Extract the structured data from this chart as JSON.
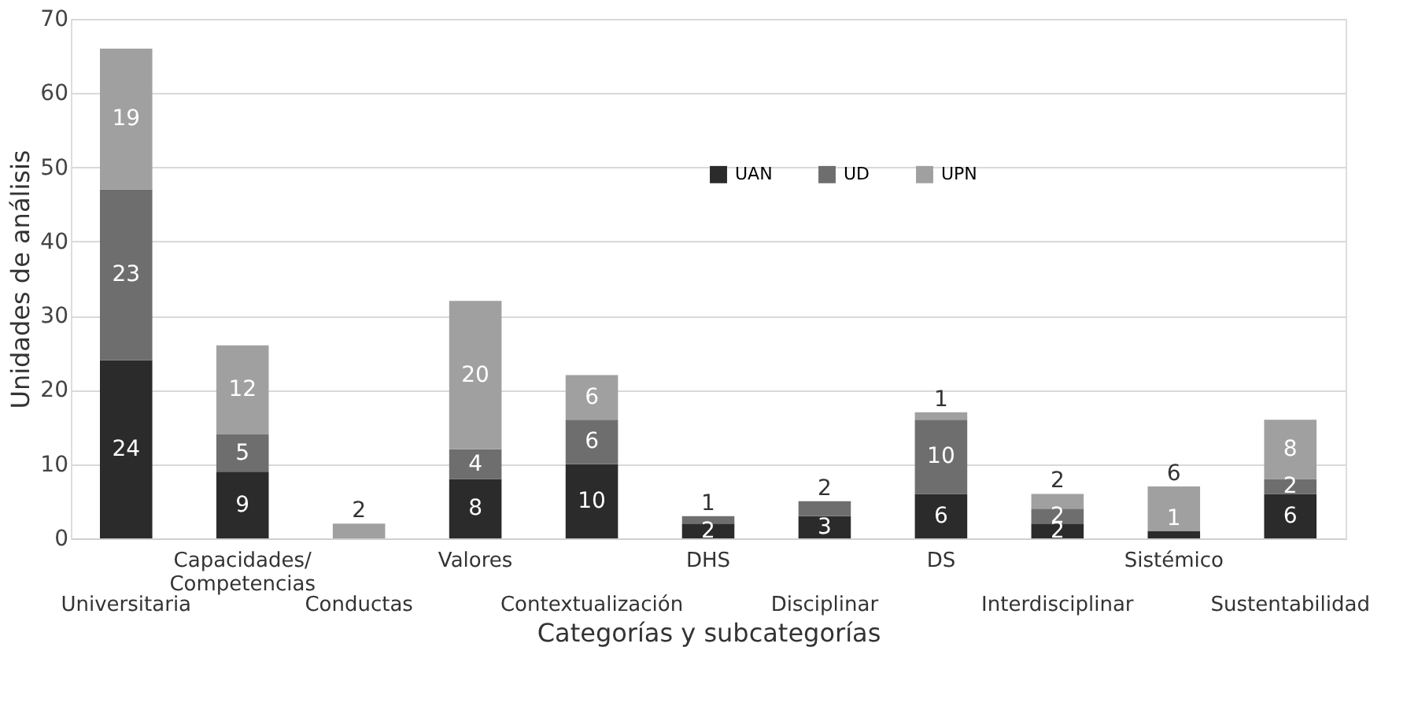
{
  "chart_data": {
    "type": "bar",
    "stacked": true,
    "xlabel": "Categorías y subcategorías",
    "ylabel": "Unidades de análisis",
    "categories": [
      "Universitaria",
      "Capacidades/\nCompetencias",
      "Conductas",
      "Valores",
      "Contextualización",
      "DHS",
      "Disciplinar",
      "DS",
      "Interdisciplinar",
      "Sistémico",
      "Sustentabilidad"
    ],
    "series": [
      {
        "name": "UAN",
        "color": "#2b2b2b",
        "values": [
          24,
          9,
          0,
          8,
          10,
          2,
          3,
          6,
          2,
          1,
          6
        ],
        "value_labels": [
          "24",
          "9",
          null,
          "8",
          "10",
          "2",
          "3",
          "6",
          "2",
          "1",
          "6"
        ]
      },
      {
        "name": "UD",
        "color": "#6e6e6e",
        "values": [
          23,
          5,
          0,
          4,
          6,
          1,
          2,
          10,
          2,
          0,
          2
        ],
        "value_labels": [
          "23",
          "5",
          null,
          "4",
          "6",
          "1",
          "2",
          "10",
          "2",
          null,
          "2"
        ]
      },
      {
        "name": "UPN",
        "color": "#a0a0a0",
        "values": [
          19,
          12,
          2,
          20,
          6,
          0,
          0,
          1,
          2,
          6,
          8
        ],
        "value_labels": [
          "19",
          "12",
          "2",
          "20",
          "6",
          null,
          null,
          "1",
          "2",
          "6",
          "8"
        ]
      }
    ],
    "ylim": [
      0,
      70
    ],
    "yticks": [
      0,
      10,
      20,
      30,
      40,
      50,
      60,
      70
    ],
    "grid": "y",
    "legend": "top"
  }
}
